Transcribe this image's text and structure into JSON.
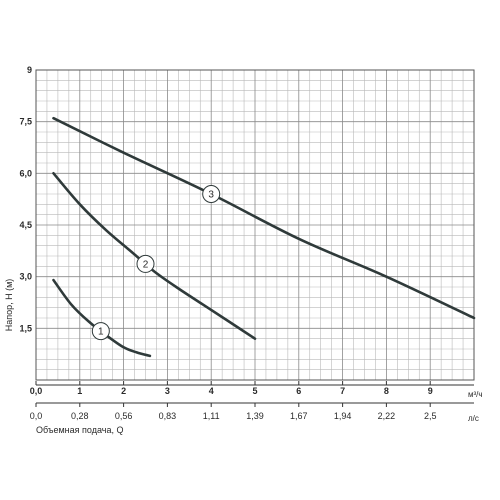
{
  "chart_data": {
    "type": "line",
    "xlabel": "Объемная подача, Q",
    "ylabel": "Напор, H (м)",
    "x_unit_top": "м³/ч",
    "x_unit_bottom": "л/с",
    "xlim": [
      0,
      10
    ],
    "ylim": [
      0,
      9
    ],
    "grid": true,
    "x_ticks_top": [
      "0,0",
      "1",
      "2",
      "3",
      "4",
      "5",
      "6",
      "7",
      "8",
      "9"
    ],
    "x_tick_values_top": [
      0,
      1,
      2,
      3,
      4,
      5,
      6,
      7,
      8,
      9
    ],
    "x_ticks_bottom": [
      "0,0",
      "0,28",
      "0,56",
      "0,83",
      "1,11",
      "1,39",
      "1,67",
      "1,94",
      "2,22",
      "2,5"
    ],
    "y_ticks": [
      "1,5",
      "3,0",
      "4,5",
      "6,0",
      "7,5",
      "9"
    ],
    "y_tick_values": [
      1.5,
      3.0,
      4.5,
      6.0,
      7.5,
      9
    ],
    "series": [
      {
        "name": "1",
        "x": [
          0.4,
          0.8,
          1.2,
          1.6,
          2.0,
          2.3,
          2.6
        ],
        "y": [
          2.9,
          2.2,
          1.7,
          1.3,
          0.95,
          0.8,
          0.7
        ]
      },
      {
        "name": "2",
        "x": [
          0.4,
          1.0,
          1.6,
          2.2,
          2.7,
          3.2,
          3.8,
          4.4,
          5.0
        ],
        "y": [
          6.0,
          5.1,
          4.35,
          3.7,
          3.15,
          2.7,
          2.2,
          1.7,
          1.2
        ]
      },
      {
        "name": "3",
        "x": [
          0.4,
          2.0,
          4.0,
          6.0,
          8.0,
          10.0
        ],
        "y": [
          7.6,
          6.6,
          5.4,
          4.1,
          3.0,
          1.8
        ]
      }
    ]
  }
}
